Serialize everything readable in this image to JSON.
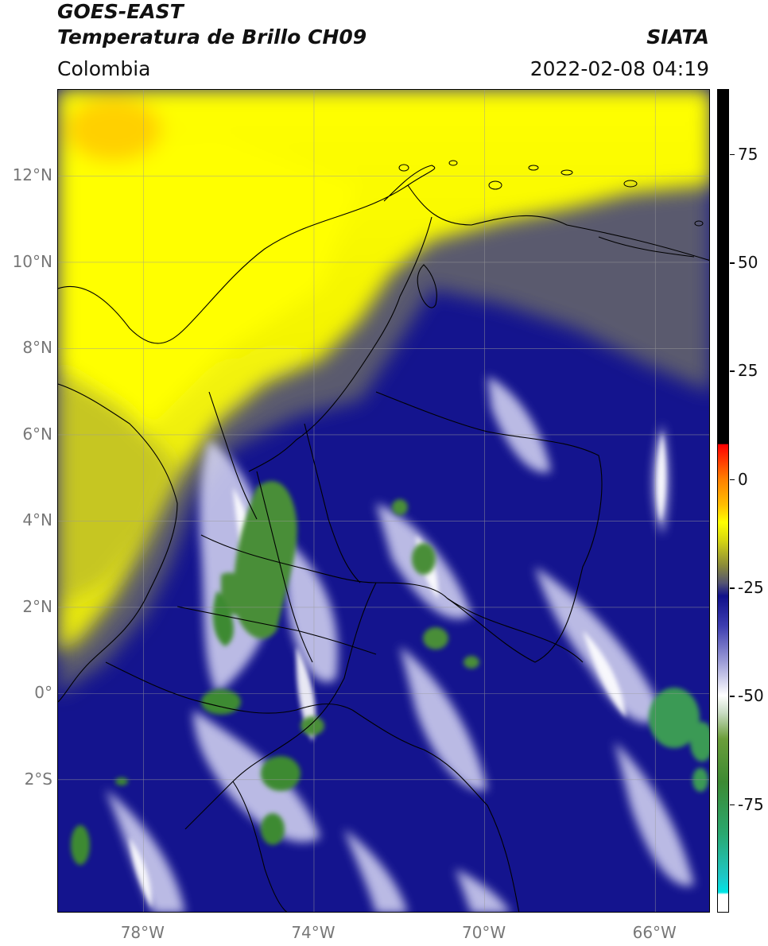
{
  "header": {
    "satellite": "GOES-EAST",
    "product": "Temperatura de Brillo CH09",
    "region": "Colombia",
    "agency": "SIATA",
    "timestamp": "2022-02-08 04:19"
  },
  "map": {
    "lon_range": [
      -80,
      -64.7
    ],
    "lat_range": [
      -5.1,
      14
    ],
    "lat_ticks": [
      {
        "value": 12,
        "label": "12°N"
      },
      {
        "value": 10,
        "label": "10°N"
      },
      {
        "value": 8,
        "label": "8°N"
      },
      {
        "value": 6,
        "label": "6°N"
      },
      {
        "value": 4,
        "label": "4°N"
      },
      {
        "value": 2,
        "label": "2°N"
      },
      {
        "value": 0,
        "label": "0°"
      },
      {
        "value": -2,
        "label": "2°S"
      }
    ],
    "lon_ticks": [
      {
        "value": -78,
        "label": "78°W"
      },
      {
        "value": -74,
        "label": "74°W"
      },
      {
        "value": -70,
        "label": "70°W"
      },
      {
        "value": -66,
        "label": "66°W"
      }
    ],
    "gridlines": true
  },
  "colorbar": {
    "range": [
      -100,
      90
    ],
    "ticks": [
      {
        "value": 75,
        "label": "75"
      },
      {
        "value": 50,
        "label": "50"
      },
      {
        "value": 25,
        "label": "25"
      },
      {
        "value": 0,
        "label": "0"
      },
      {
        "value": -25,
        "label": "-25"
      },
      {
        "value": -50,
        "label": "-50"
      },
      {
        "value": -75,
        "label": "-75"
      }
    ],
    "stops": [
      {
        "value": -100,
        "color": "#ffffff"
      },
      {
        "value": -96,
        "color": "#ffffff"
      },
      {
        "value": -95.5,
        "color": "#00e5e5"
      },
      {
        "value": -92,
        "color": "#1ec8c8"
      },
      {
        "value": -82,
        "color": "#2aa870"
      },
      {
        "value": -70,
        "color": "#3d8a33"
      },
      {
        "value": -60,
        "color": "#6b9e3a"
      },
      {
        "value": -54,
        "color": "#c9dcc4"
      },
      {
        "value": -50,
        "color": "#ffffff"
      },
      {
        "value": -42,
        "color": "#9a9ad6"
      },
      {
        "value": -34,
        "color": "#3e3eb0"
      },
      {
        "value": -27,
        "color": "#10108a"
      },
      {
        "value": -24,
        "color": "#545472"
      },
      {
        "value": -20,
        "color": "#8a8a3a"
      },
      {
        "value": -14,
        "color": "#d8d810"
      },
      {
        "value": -10,
        "color": "#ffff00"
      },
      {
        "value": -6,
        "color": "#ffbf00"
      },
      {
        "value": 0,
        "color": "#ff8000"
      },
      {
        "value": 8,
        "color": "#ff0000"
      },
      {
        "value": 8.2,
        "color": "#000000"
      },
      {
        "value": 90,
        "color": "#000000"
      }
    ]
  }
}
